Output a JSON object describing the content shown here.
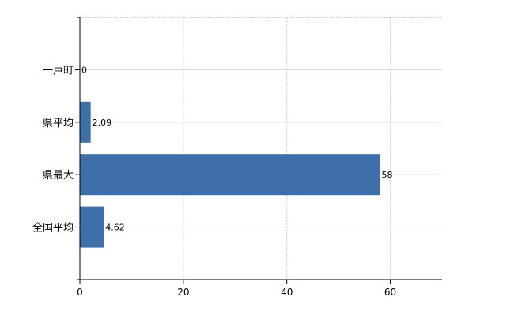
{
  "chart_data": {
    "type": "bar",
    "orientation": "horizontal",
    "categories": [
      "一戸町",
      "県平均",
      "県最大",
      "全国平均"
    ],
    "values": [
      0,
      2.09,
      58,
      4.62
    ],
    "data_labels": [
      "0",
      "2.09",
      "58",
      "4.62"
    ],
    "title": "",
    "xlabel": "",
    "ylabel": "",
    "xlim": [
      0,
      70
    ],
    "xticks": [
      0,
      20,
      40,
      60
    ],
    "grid": true,
    "legend": "none",
    "bar_color": "#3f6fa8",
    "grid_color": "#d3d3d3"
  }
}
